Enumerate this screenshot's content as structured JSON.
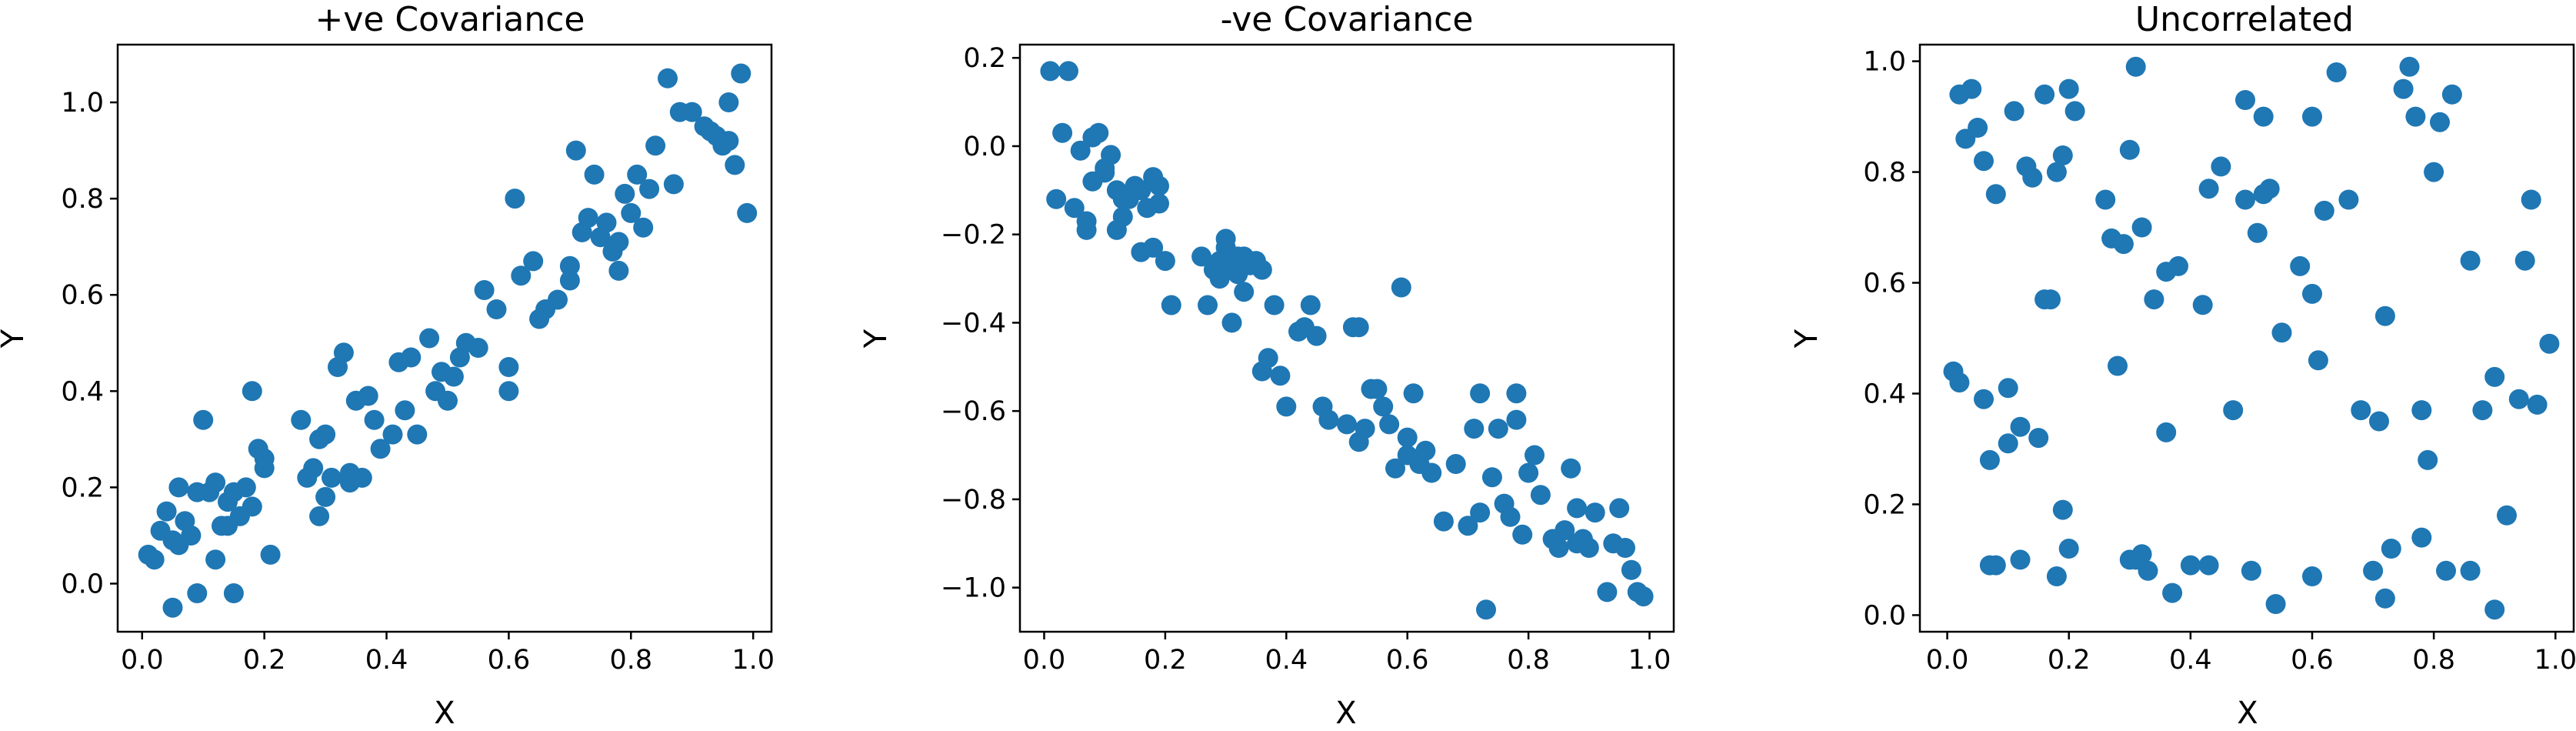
{
  "chart_data": [
    {
      "type": "scatter",
      "title": "+ve Covariance",
      "xlabel": "X",
      "ylabel": "Y",
      "xlim": [
        -0.04,
        1.03
      ],
      "ylim": [
        -0.1,
        1.12
      ],
      "xticks": [
        "0.0",
        "0.2",
        "0.4",
        "0.6",
        "0.8",
        "1.0"
      ],
      "yticks": [
        "0.0",
        "0.2",
        "0.4",
        "0.6",
        "0.8",
        "1.0"
      ],
      "grid": false,
      "marker_color": "#1f77b4",
      "series": [
        {
          "x": [
            0.01,
            0.03,
            0.04,
            0.05,
            0.06,
            0.07,
            0.08,
            0.09,
            0.1,
            0.11,
            0.12,
            0.13,
            0.14,
            0.15,
            0.16,
            0.17,
            0.18,
            0.19,
            0.2,
            0.21,
            0.05,
            0.08,
            0.12,
            0.15,
            0.18,
            0.2,
            0.02,
            0.06,
            0.09,
            0.14,
            0.26,
            0.28,
            0.29,
            0.3,
            0.31,
            0.32,
            0.33,
            0.34,
            0.36,
            0.37,
            0.38,
            0.41,
            0.42,
            0.44,
            0.45,
            0.47,
            0.49,
            0.5,
            0.52,
            0.53,
            0.27,
            0.3,
            0.35,
            0.39,
            0.43,
            0.55,
            0.48,
            0.51,
            0.29,
            0.34,
            0.56,
            0.58,
            0.6,
            0.61,
            0.62,
            0.64,
            0.66,
            0.68,
            0.7,
            0.71,
            0.72,
            0.73,
            0.74,
            0.76,
            0.77,
            0.78,
            0.79,
            0.8,
            0.81,
            0.82,
            0.84,
            0.86,
            0.88,
            0.9,
            0.92,
            0.94,
            0.96,
            0.97,
            0.98,
            0.99,
            0.6,
            0.65,
            0.75,
            0.83,
            0.87,
            0.93,
            0.95,
            0.96,
            0.78,
            0.7
          ],
          "y": [
            0.06,
            0.11,
            0.15,
            0.09,
            0.2,
            0.13,
            0.1,
            -0.02,
            0.34,
            0.19,
            0.05,
            0.12,
            0.17,
            0.19,
            0.14,
            0.2,
            0.4,
            0.28,
            0.24,
            0.06,
            -0.05,
            0.1,
            0.21,
            -0.02,
            0.16,
            0.26,
            0.05,
            0.08,
            0.19,
            0.12,
            0.34,
            0.24,
            0.3,
            0.31,
            0.22,
            0.45,
            0.48,
            0.21,
            0.22,
            0.39,
            0.34,
            0.31,
            0.46,
            0.47,
            0.31,
            0.51,
            0.44,
            0.38,
            0.47,
            0.5,
            0.22,
            0.18,
            0.38,
            0.28,
            0.36,
            0.49,
            0.4,
            0.43,
            0.14,
            0.23,
            0.61,
            0.57,
            0.45,
            0.8,
            0.64,
            0.67,
            0.57,
            0.59,
            0.66,
            0.9,
            0.73,
            0.76,
            0.85,
            0.75,
            0.69,
            0.71,
            0.81,
            0.77,
            0.85,
            0.74,
            0.91,
            1.05,
            0.98,
            0.98,
            0.95,
            0.93,
            1.0,
            0.87,
            1.06,
            0.77,
            0.4,
            0.55,
            0.72,
            0.82,
            0.83,
            0.94,
            0.91,
            0.92,
            0.65,
            0.63
          ]
        }
      ]
    },
    {
      "type": "scatter",
      "title": "-ve Covariance",
      "xlabel": "X",
      "ylabel": "Y",
      "xlim": [
        -0.04,
        1.04
      ],
      "ylim": [
        -1.1,
        0.23
      ],
      "xticks": [
        "0.0",
        "0.2",
        "0.4",
        "0.6",
        "0.8",
        "1.0"
      ],
      "yticks": [
        "−1.0",
        "−0.8",
        "−0.6",
        "−0.4",
        "−0.2",
        "0.0",
        "0.2"
      ],
      "grid": false,
      "marker_color": "#1f77b4",
      "series": [
        {
          "x": [
            0.01,
            0.03,
            0.04,
            0.06,
            0.07,
            0.08,
            0.09,
            0.1,
            0.11,
            0.12,
            0.13,
            0.14,
            0.15,
            0.16,
            0.17,
            0.18,
            0.19,
            0.2,
            0.02,
            0.05,
            0.08,
            0.12,
            0.15,
            0.18,
            0.21,
            0.07,
            0.1,
            0.13,
            0.16,
            0.19,
            0.26,
            0.27,
            0.28,
            0.29,
            0.3,
            0.31,
            0.32,
            0.33,
            0.34,
            0.35,
            0.36,
            0.37,
            0.38,
            0.4,
            0.42,
            0.43,
            0.44,
            0.45,
            0.46,
            0.47,
            0.29,
            0.31,
            0.33,
            0.36,
            0.39,
            0.3,
            0.32,
            0.34,
            0.5,
            0.51,
            0.52,
            0.53,
            0.54,
            0.55,
            0.56,
            0.57,
            0.58,
            0.59,
            0.6,
            0.61,
            0.62,
            0.63,
            0.64,
            0.66,
            0.68,
            0.7,
            0.71,
            0.72,
            0.73,
            0.74,
            0.75,
            0.76,
            0.77,
            0.78,
            0.79,
            0.8,
            0.81,
            0.82,
            0.84,
            0.85,
            0.86,
            0.87,
            0.88,
            0.89,
            0.9,
            0.91,
            0.93,
            0.94,
            0.95,
            0.96,
            0.97,
            0.98,
            0.99,
            0.52,
            0.6,
            0.78,
            0.88,
            0.72
          ],
          "y": [
            0.17,
            0.03,
            0.17,
            -0.01,
            -0.19,
            0.02,
            0.03,
            -0.06,
            -0.02,
            -0.1,
            -0.16,
            -0.12,
            -0.09,
            -0.1,
            -0.14,
            -0.23,
            -0.09,
            -0.26,
            -0.12,
            -0.14,
            -0.08,
            -0.19,
            -0.1,
            -0.07,
            -0.36,
            -0.17,
            -0.05,
            -0.12,
            -0.24,
            -0.13,
            -0.25,
            -0.36,
            -0.28,
            -0.3,
            -0.21,
            -0.4,
            -0.25,
            -0.33,
            -0.27,
            -0.26,
            -0.51,
            -0.48,
            -0.36,
            -0.59,
            -0.42,
            -0.41,
            -0.36,
            -0.43,
            -0.59,
            -0.62,
            -0.26,
            -0.28,
            -0.25,
            -0.28,
            -0.52,
            -0.23,
            -0.29,
            -0.26,
            -0.63,
            -0.41,
            -0.67,
            -0.64,
            -0.55,
            -0.55,
            -0.59,
            -0.63,
            -0.73,
            -0.32,
            -0.66,
            -0.56,
            -0.72,
            -0.69,
            -0.74,
            -0.85,
            -0.72,
            -0.86,
            -0.64,
            -0.83,
            -1.05,
            -0.75,
            -0.64,
            -0.81,
            -0.84,
            -0.56,
            -0.88,
            -0.74,
            -0.7,
            -0.79,
            -0.89,
            -0.91,
            -0.87,
            -0.73,
            -0.82,
            -0.89,
            -0.91,
            -0.83,
            -1.01,
            -0.9,
            -0.82,
            -0.91,
            -0.96,
            -1.01,
            -1.02,
            -0.41,
            -0.7,
            -0.62,
            -0.9,
            -0.56
          ]
        }
      ]
    },
    {
      "type": "scatter",
      "title": "Uncorrelated",
      "xlabel": "X",
      "ylabel": "Y",
      "xlim": [
        -0.045,
        1.03
      ],
      "ylim": [
        -0.03,
        1.03
      ],
      "xticks": [
        "0.0",
        "0.2",
        "0.4",
        "0.6",
        "0.8",
        "1.0"
      ],
      "yticks": [
        "0.0",
        "0.2",
        "0.4",
        "0.6",
        "0.8",
        "1.0"
      ],
      "grid": false,
      "marker_color": "#1f77b4",
      "series": [
        {
          "x": [
            0.01,
            0.02,
            0.03,
            0.04,
            0.05,
            0.06,
            0.07,
            0.08,
            0.1,
            0.11,
            0.12,
            0.14,
            0.15,
            0.16,
            0.17,
            0.18,
            0.19,
            0.2,
            0.21,
            0.06,
            0.08,
            0.1,
            0.13,
            0.16,
            0.19,
            0.02,
            0.07,
            0.12,
            0.18,
            0.2,
            0.26,
            0.28,
            0.29,
            0.3,
            0.31,
            0.32,
            0.34,
            0.36,
            0.38,
            0.4,
            0.42,
            0.43,
            0.45,
            0.47,
            0.49,
            0.5,
            0.51,
            0.52,
            0.53,
            0.54,
            0.55,
            0.27,
            0.31,
            0.33,
            0.36,
            0.37,
            0.43,
            0.49,
            0.52,
            0.32,
            0.3,
            0.58,
            0.6,
            0.61,
            0.62,
            0.64,
            0.66,
            0.68,
            0.71,
            0.72,
            0.73,
            0.75,
            0.76,
            0.77,
            0.78,
            0.79,
            0.8,
            0.81,
            0.82,
            0.83,
            0.86,
            0.88,
            0.9,
            0.92,
            0.94,
            0.95,
            0.96,
            0.97,
            0.99,
            0.6,
            0.7,
            0.78,
            0.86,
            0.9,
            0.72,
            0.6
          ],
          "y": [
            0.44,
            0.94,
            0.86,
            0.95,
            0.88,
            0.82,
            0.28,
            0.76,
            0.41,
            0.91,
            0.34,
            0.79,
            0.32,
            0.94,
            0.57,
            0.8,
            0.83,
            0.95,
            0.91,
            0.39,
            0.09,
            0.31,
            0.81,
            0.57,
            0.19,
            0.42,
            0.09,
            0.1,
            0.07,
            0.12,
            0.75,
            0.45,
            0.67,
            0.84,
            0.1,
            0.7,
            0.57,
            0.62,
            0.63,
            0.09,
            0.56,
            0.77,
            0.81,
            0.37,
            0.93,
            0.08,
            0.69,
            0.9,
            0.77,
            0.02,
            0.51,
            0.68,
            0.99,
            0.08,
            0.33,
            0.04,
            0.09,
            0.75,
            0.76,
            0.11,
            0.1,
            0.63,
            0.58,
            0.46,
            0.73,
            0.98,
            0.75,
            0.37,
            0.35,
            0.54,
            0.12,
            0.95,
            0.99,
            0.9,
            0.37,
            0.28,
            0.8,
            0.89,
            0.08,
            0.94,
            0.64,
            0.37,
            0.43,
            0.18,
            0.39,
            0.64,
            0.75,
            0.38,
            0.49,
            0.9,
            0.08,
            0.14,
            0.08,
            0.01,
            0.03,
            0.07
          ]
        }
      ]
    }
  ]
}
